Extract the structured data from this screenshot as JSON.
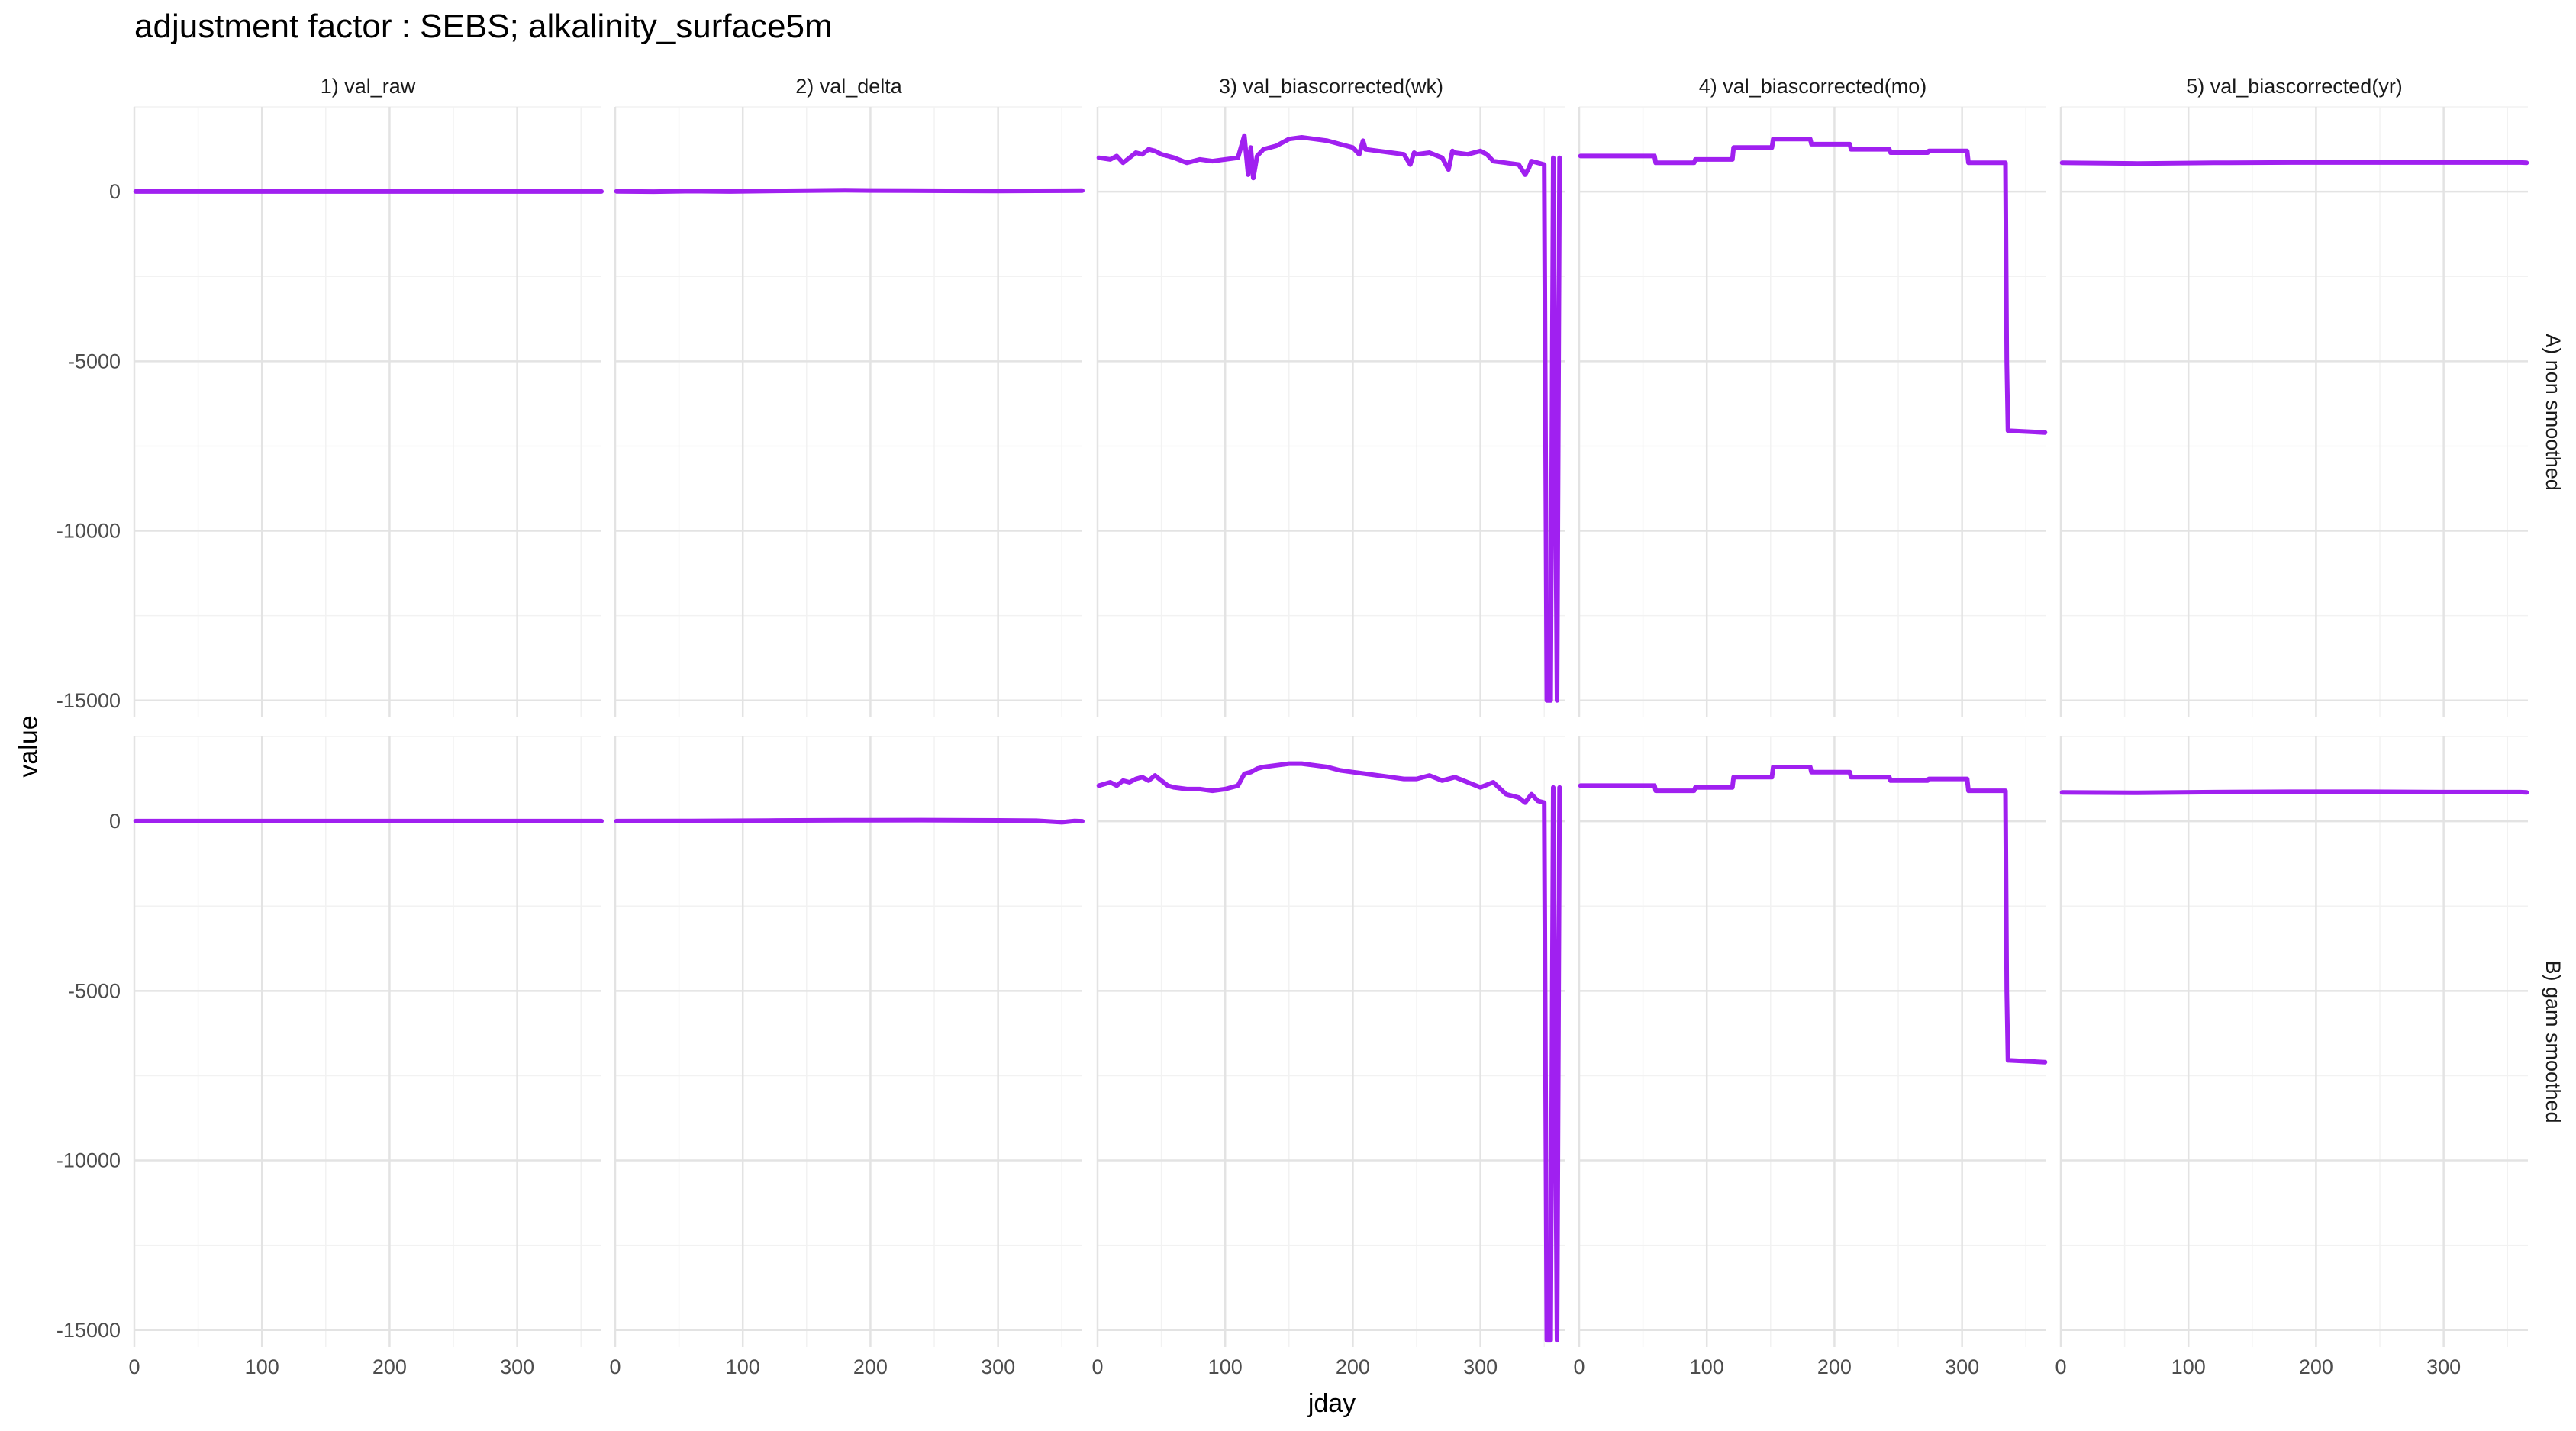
{
  "chart_data": {
    "type": "line",
    "title": "adjustment factor : SEBS; alkalinity_surface5m",
    "xlabel": "jday",
    "ylabel": "value",
    "xlim": [
      0,
      366
    ],
    "ylim": [
      -15500,
      2500
    ],
    "x_ticks": [
      0,
      100,
      200,
      300
    ],
    "y_ticks": [
      0,
      -5000,
      -10000,
      -15000
    ],
    "grid": true,
    "line_color": "#A020F0",
    "columns": [
      "1) val_raw",
      "2) val_delta",
      "3) val_biascorrected(wk)",
      "4) val_biascorrected(mo)",
      "5) val_biascorrected(yr)"
    ],
    "rows": [
      "A) non smoothed",
      "B) gam smoothed"
    ],
    "panels": [
      {
        "row": 0,
        "col": 0,
        "x": [
          1,
          366
        ],
        "y": [
          5,
          5
        ]
      },
      {
        "row": 0,
        "col": 1,
        "x": [
          1,
          30,
          60,
          90,
          120,
          150,
          180,
          200,
          230,
          260,
          300,
          330,
          366
        ],
        "y": [
          10,
          0,
          15,
          5,
          20,
          30,
          40,
          35,
          30,
          25,
          20,
          25,
          30
        ]
      },
      {
        "row": 0,
        "col": 2,
        "x": [
          1,
          10,
          15,
          20,
          25,
          30,
          35,
          40,
          45,
          50,
          55,
          60,
          70,
          80,
          90,
          100,
          110,
          115,
          118,
          120,
          122,
          125,
          130,
          140,
          150,
          160,
          170,
          180,
          190,
          200,
          205,
          208,
          210,
          220,
          230,
          240,
          245,
          248,
          250,
          260,
          270,
          275,
          278,
          280,
          290,
          300,
          305,
          310,
          320,
          330,
          335,
          338,
          340,
          345,
          350,
          352,
          355,
          357,
          360,
          362
        ],
        "y": [
          1000,
          950,
          1050,
          850,
          1000,
          1150,
          1100,
          1250,
          1200,
          1100,
          1050,
          1000,
          850,
          950,
          900,
          950,
          1000,
          1650,
          500,
          1300,
          400,
          1050,
          1250,
          1350,
          1550,
          1600,
          1550,
          1500,
          1400,
          1300,
          1100,
          1500,
          1250,
          1200,
          1150,
          1100,
          800,
          1150,
          1100,
          1150,
          1000,
          650,
          1200,
          1150,
          1100,
          1200,
          1100,
          900,
          850,
          800,
          500,
          700,
          900,
          850,
          800,
          -15000,
          -15000,
          1000,
          -15000,
          1000
        ]
      },
      {
        "row": 0,
        "col": 3,
        "x": [
          1,
          31,
          32,
          59,
          60,
          90,
          91,
          120,
          121,
          151,
          152,
          181,
          182,
          212,
          213,
          243,
          244,
          273,
          274,
          304,
          305,
          334,
          335,
          336,
          337,
          365
        ],
        "y": [
          1050,
          1050,
          1050,
          1050,
          850,
          850,
          950,
          950,
          1300,
          1300,
          1550,
          1550,
          1400,
          1400,
          1250,
          1250,
          1150,
          1150,
          1200,
          1200,
          850,
          850,
          -5000,
          -7050,
          -7050,
          -7100
        ]
      },
      {
        "row": 0,
        "col": 4,
        "x": [
          1,
          60,
          120,
          180,
          240,
          300,
          360,
          365
        ],
        "y": [
          850,
          830,
          850,
          860,
          860,
          860,
          860,
          850
        ]
      },
      {
        "row": 1,
        "col": 0,
        "x": [
          1,
          366
        ],
        "y": [
          5,
          5
        ]
      },
      {
        "row": 1,
        "col": 1,
        "x": [
          1,
          60,
          120,
          180,
          240,
          300,
          330,
          350,
          360,
          366
        ],
        "y": [
          5,
          10,
          20,
          30,
          35,
          25,
          15,
          -30,
          10,
          0
        ]
      },
      {
        "row": 1,
        "col": 2,
        "x": [
          1,
          10,
          15,
          20,
          25,
          30,
          35,
          40,
          45,
          50,
          55,
          60,
          70,
          80,
          90,
          100,
          110,
          115,
          120,
          125,
          130,
          140,
          150,
          160,
          170,
          180,
          190,
          200,
          210,
          220,
          230,
          240,
          250,
          260,
          270,
          280,
          290,
          300,
          310,
          320,
          330,
          335,
          340,
          345,
          350,
          352,
          355,
          357,
          360,
          362
        ],
        "y": [
          1050,
          1150,
          1050,
          1200,
          1150,
          1250,
          1300,
          1200,
          1350,
          1200,
          1050,
          1000,
          950,
          950,
          900,
          950,
          1050,
          1400,
          1450,
          1550,
          1600,
          1650,
          1700,
          1700,
          1650,
          1600,
          1500,
          1450,
          1400,
          1350,
          1300,
          1250,
          1250,
          1350,
          1200,
          1300,
          1150,
          1000,
          1150,
          800,
          700,
          550,
          800,
          600,
          550,
          -15300,
          -15300,
          1000,
          -15300,
          1000
        ]
      },
      {
        "row": 1,
        "col": 3,
        "x": [
          1,
          31,
          32,
          59,
          60,
          90,
          91,
          120,
          121,
          151,
          152,
          181,
          182,
          212,
          213,
          243,
          244,
          273,
          274,
          304,
          305,
          334,
          335,
          336,
          337,
          365
        ],
        "y": [
          1050,
          1050,
          1050,
          1050,
          900,
          900,
          1000,
          1000,
          1300,
          1300,
          1600,
          1600,
          1450,
          1450,
          1300,
          1300,
          1200,
          1200,
          1250,
          1250,
          900,
          900,
          -5000,
          -7050,
          -7050,
          -7100
        ]
      },
      {
        "row": 1,
        "col": 4,
        "x": [
          1,
          60,
          120,
          180,
          240,
          300,
          360,
          365
        ],
        "y": [
          850,
          840,
          860,
          870,
          870,
          860,
          860,
          850
        ]
      }
    ]
  }
}
